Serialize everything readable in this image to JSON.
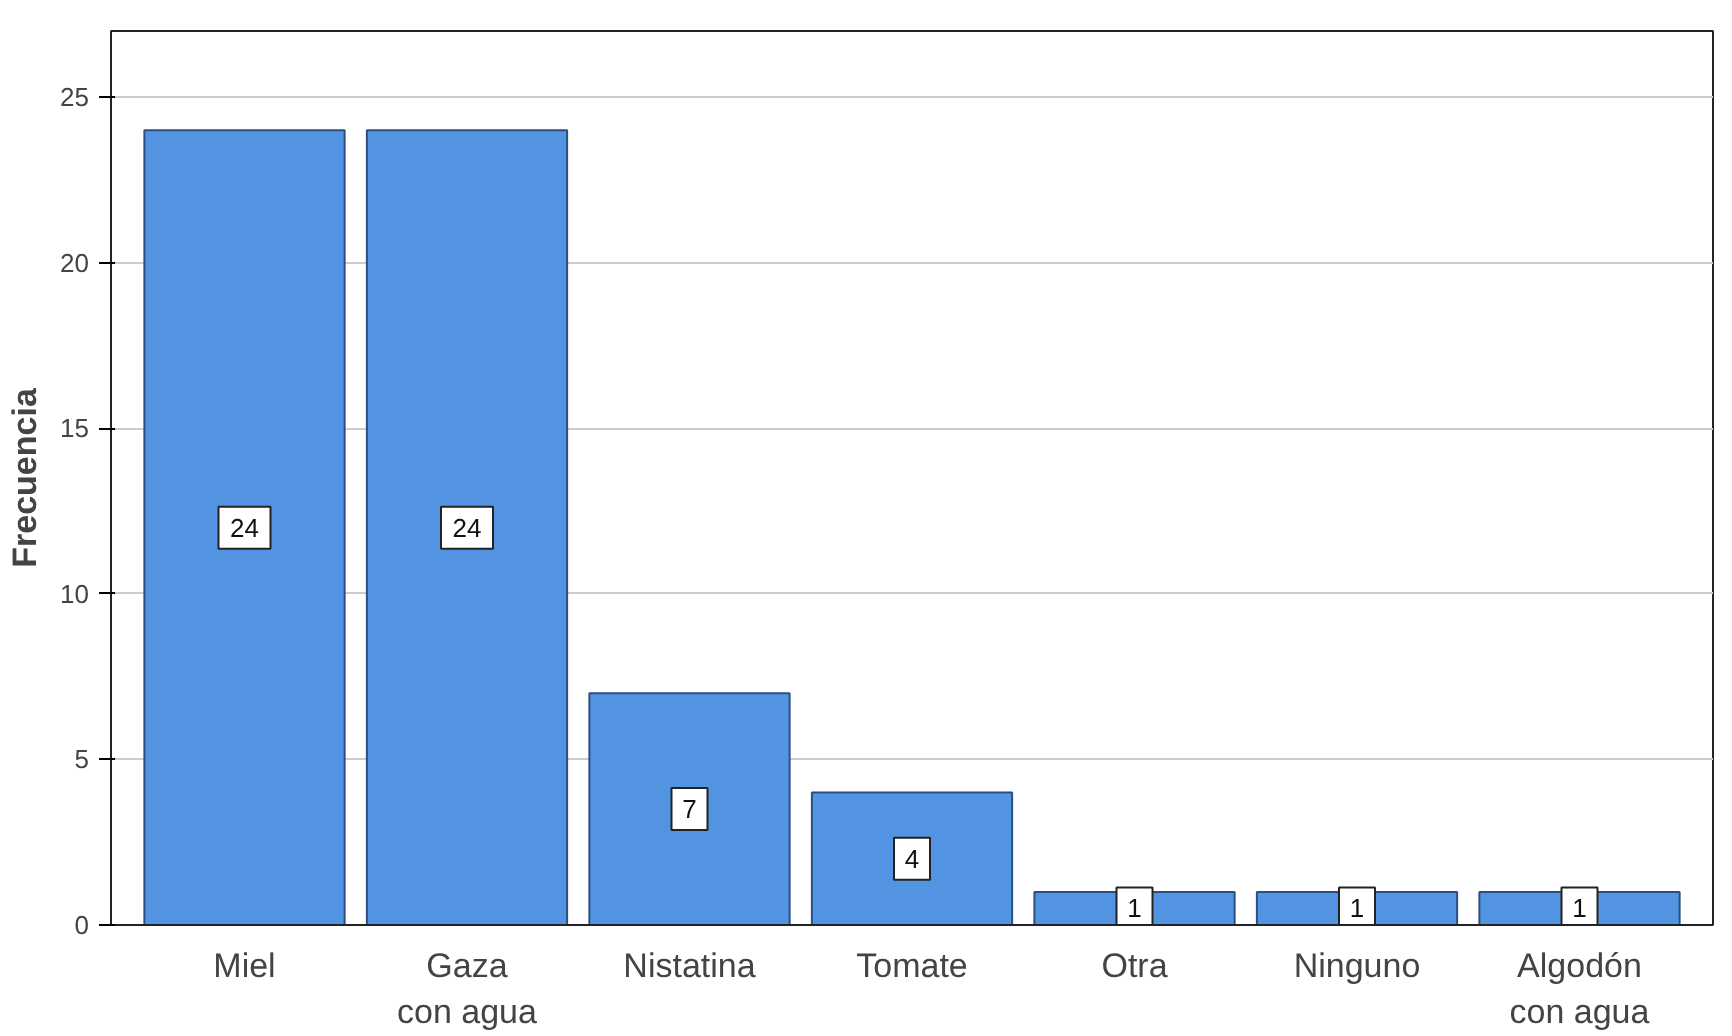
{
  "chart_data": {
    "type": "bar",
    "ylabel": "Frecuencia",
    "categories": [
      "Miel",
      "Gaza\ncon agua",
      "Nistatina",
      "Tomate",
      "Otra",
      "Ninguno",
      "Algodón\ncon agua"
    ],
    "values": [
      24,
      24,
      7,
      4,
      1,
      1,
      1
    ],
    "color": "#5294e2",
    "ylim": [
      0,
      27
    ],
    "yticks": [
      0,
      5,
      10,
      15,
      20,
      25
    ],
    "grid": "y",
    "data_labels": true
  }
}
